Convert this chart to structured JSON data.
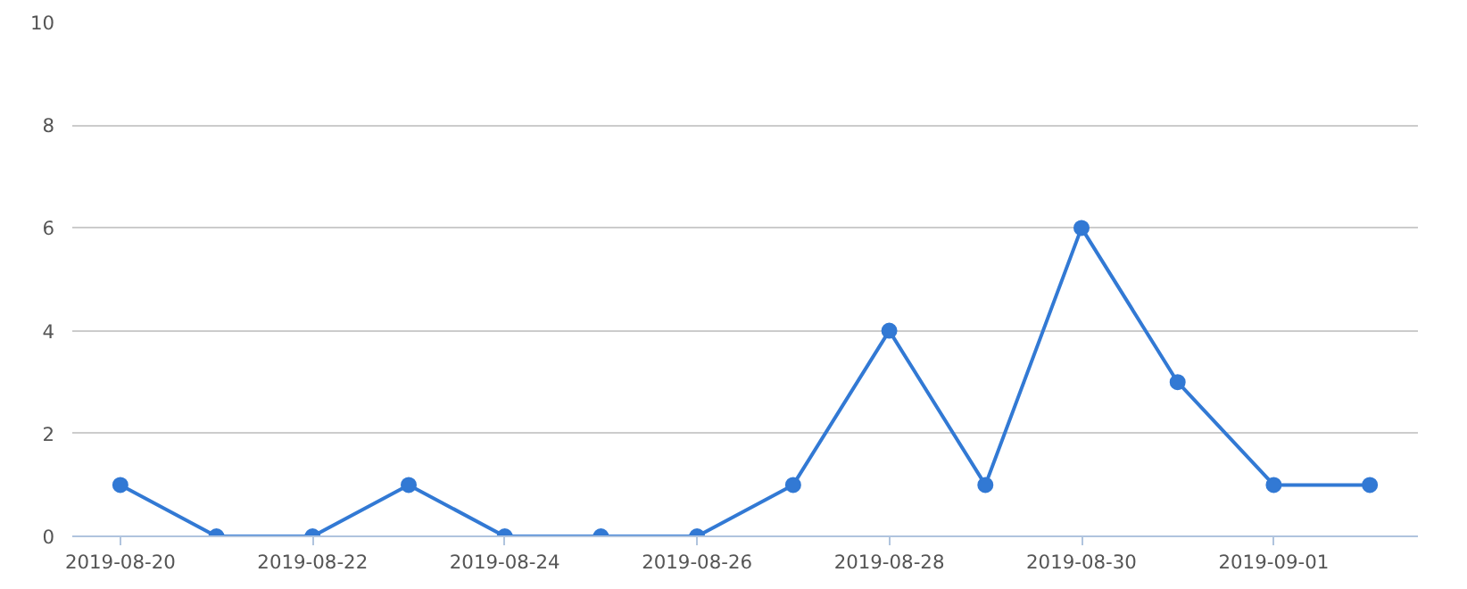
{
  "chart_data": {
    "type": "line",
    "x": [
      "2019-08-20",
      "2019-08-21",
      "2019-08-22",
      "2019-08-23",
      "2019-08-24",
      "2019-08-25",
      "2019-08-26",
      "2019-08-27",
      "2019-08-28",
      "2019-08-29",
      "2019-08-30",
      "2019-08-31",
      "2019-09-01",
      "2019-09-02"
    ],
    "series": [
      {
        "color": "#3279d4",
        "values": [
          1,
          0,
          0,
          1,
          0,
          0,
          0,
          1,
          4,
          1,
          6,
          3,
          1,
          1
        ]
      }
    ],
    "xlim": [
      "2019-08-19T12:00",
      "2019-09-02T12:00"
    ],
    "xticks": [
      {
        "value": "2019-08-20",
        "label": "2019-08-20"
      },
      {
        "value": "2019-08-22",
        "label": "2019-08-22"
      },
      {
        "value": "2019-08-24",
        "label": "2019-08-24"
      },
      {
        "value": "2019-08-26",
        "label": "2019-08-26"
      },
      {
        "value": "2019-08-28",
        "label": "2019-08-28"
      },
      {
        "value": "2019-08-30",
        "label": "2019-08-30"
      },
      {
        "value": "2019-09-01",
        "label": "2019-09-01"
      }
    ],
    "ylim": [
      0,
      10
    ],
    "yticks": [
      0,
      2,
      4,
      6,
      8,
      10
    ],
    "grid": "y",
    "marker": "circle",
    "line_style": "solid"
  }
}
